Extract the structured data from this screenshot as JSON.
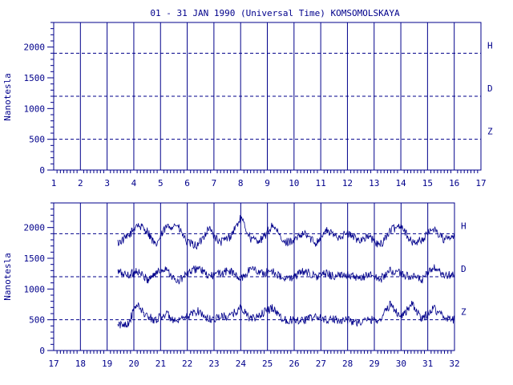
{
  "chart_data": {
    "type": "line",
    "title": "01 - 31 JAN 1990 (Universal Time) KOMSOMOLSKAYA",
    "ylabel": "Nanotesla",
    "ylim": [
      0,
      2400
    ],
    "yticks": [
      0,
      500,
      1000,
      1500,
      2000
    ],
    "baseline_levels": {
      "H": 1900,
      "D": 1200,
      "Z": 500
    },
    "color": "#00008b",
    "panels": [
      {
        "xlim": [
          1,
          17
        ],
        "xticks": [
          1,
          2,
          3,
          4,
          5,
          6,
          7,
          8,
          9,
          10,
          11,
          12,
          13,
          14,
          15,
          16,
          17
        ],
        "component_labels": [
          "H",
          "D",
          "Z"
        ],
        "series": []
      },
      {
        "xlim": [
          17,
          32
        ],
        "xticks": [
          17,
          18,
          19,
          20,
          21,
          22,
          23,
          24,
          25,
          26,
          27,
          28,
          29,
          30,
          31,
          32
        ],
        "component_labels": [
          "H",
          "D",
          "Z"
        ],
        "data_start_day": 19.4,
        "series": [
          {
            "name": "H",
            "x": [
              19.4,
              19.8,
              20.1,
              20.5,
              20.8,
              21.2,
              21.6,
              22.0,
              22.4,
              22.8,
              23.2,
              23.6,
              24.0,
              24.4,
              24.8,
              25.2,
              25.6,
              26.0,
              26.4,
              26.8,
              27.2,
              27.6,
              28.0,
              28.4,
              28.8,
              29.2,
              29.6,
              30.0,
              30.4,
              30.8,
              31.2,
              31.6,
              32.0
            ],
            "y": [
              1750,
              1850,
              2050,
              1950,
              1700,
              2000,
              2050,
              1750,
              1700,
              2000,
              1750,
              1850,
              2150,
              1800,
              1800,
              2050,
              1750,
              1800,
              1900,
              1750,
              1950,
              1850,
              1900,
              1800,
              1850,
              1700,
              1950,
              2050,
              1750,
              1800,
              2000,
              1800,
              1850
            ]
          },
          {
            "name": "D",
            "x": [
              19.4,
              19.8,
              20.1,
              20.5,
              20.8,
              21.2,
              21.6,
              22.0,
              22.4,
              22.8,
              23.2,
              23.6,
              24.0,
              24.4,
              24.8,
              25.2,
              25.6,
              26.0,
              26.4,
              26.8,
              27.2,
              27.6,
              28.0,
              28.4,
              28.8,
              29.2,
              29.6,
              30.0,
              30.4,
              30.8,
              31.2,
              31.6,
              32.0
            ],
            "y": [
              1280,
              1220,
              1300,
              1150,
              1250,
              1350,
              1100,
              1250,
              1350,
              1200,
              1250,
              1300,
              1150,
              1350,
              1250,
              1300,
              1150,
              1200,
              1300,
              1200,
              1250,
              1200,
              1250,
              1150,
              1250,
              1150,
              1300,
              1250,
              1200,
              1150,
              1350,
              1200,
              1250
            ]
          },
          {
            "name": "Z",
            "x": [
              19.4,
              19.8,
              20.1,
              20.5,
              20.8,
              21.2,
              21.6,
              22.0,
              22.4,
              22.8,
              23.2,
              23.6,
              24.0,
              24.4,
              24.8,
              25.2,
              25.6,
              26.0,
              26.4,
              26.8,
              27.2,
              27.6,
              28.0,
              28.4,
              28.8,
              29.2,
              29.6,
              30.0,
              30.4,
              30.8,
              31.2,
              31.6,
              32.0
            ],
            "y": [
              400,
              450,
              750,
              550,
              500,
              600,
              450,
              550,
              650,
              500,
              550,
              550,
              700,
              500,
              600,
              700,
              500,
              500,
              500,
              550,
              500,
              500,
              500,
              450,
              500,
              500,
              750,
              550,
              750,
              500,
              700,
              550,
              500
            ]
          }
        ]
      }
    ]
  }
}
